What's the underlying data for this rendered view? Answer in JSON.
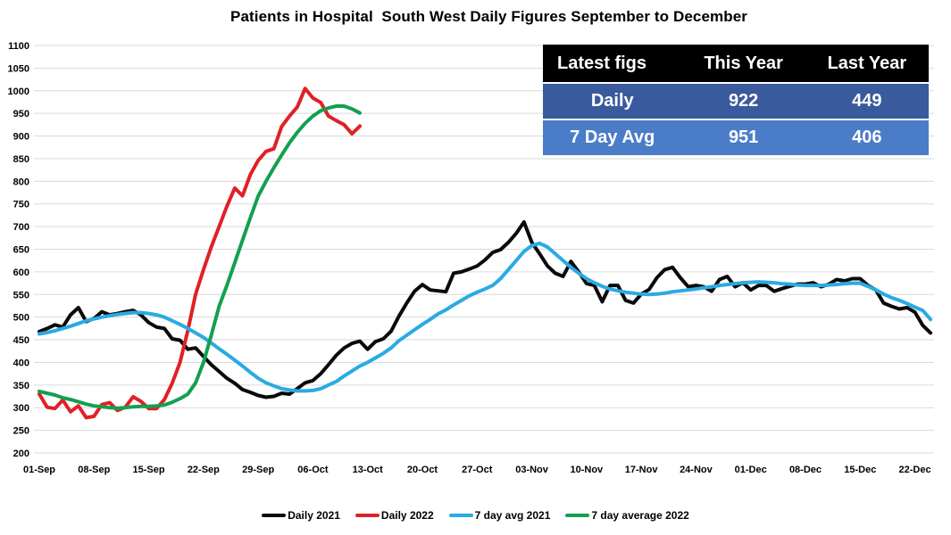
{
  "title": "Patients in Hospital  South West Daily Figures September to December",
  "table": {
    "headers": [
      "Latest figs",
      "This Year",
      "Last Year"
    ],
    "rows": [
      [
        "Daily",
        "922",
        "449"
      ],
      [
        "7 Day Avg",
        "951",
        "406"
      ]
    ],
    "colors": {
      "header_bg": "#000000",
      "header_text": "#ffffff",
      "row1_bg": "#3a5a9e",
      "row2_bg": "#4a7cc8",
      "row_text": "#ffffff"
    }
  },
  "chart_data": {
    "type": "line",
    "title": "Patients in Hospital  South West Daily Figures September to December",
    "xlabel": "",
    "ylabel": "",
    "ylim": [
      200,
      1100
    ],
    "y_tick_step": 50,
    "grid": true,
    "gridline_color": "#d9d9d9",
    "legend_position": "bottom",
    "x_tick_labels": [
      "01-Sep",
      "08-Sep",
      "15-Sep",
      "22-Sep",
      "29-Sep",
      "06-Oct",
      "13-Oct",
      "20-Oct",
      "27-Oct",
      "03-Nov",
      "10-Nov",
      "17-Nov",
      "24-Nov",
      "01-Dec",
      "08-Dec",
      "15-Dec",
      "22-Dec"
    ],
    "x_tick_interval_days": 7,
    "series": [
      {
        "name": "Daily 2021",
        "color": "#0a0a0a",
        "start_date": "01-Sep",
        "values": [
          468,
          475,
          483,
          478,
          505,
          521,
          490,
          497,
          512,
          505,
          508,
          512,
          515,
          505,
          488,
          478,
          475,
          452,
          449,
          429,
          432,
          413,
          395,
          380,
          365,
          354,
          340,
          334,
          327,
          323,
          325,
          332,
          330,
          342,
          355,
          360,
          375,
          395,
          416,
          432,
          442,
          447,
          429,
          446,
          452,
          469,
          502,
          531,
          557,
          572,
          560,
          558,
          556,
          597,
          600,
          606,
          613,
          626,
          643,
          649,
          665,
          685,
          710,
          665,
          640,
          613,
          597,
          590,
          623,
          600,
          574,
          570,
          534,
          570,
          570,
          537,
          531,
          551,
          561,
          587,
          605,
          610,
          587,
          567,
          570,
          567,
          557,
          583,
          590,
          567,
          576,
          560,
          570,
          570,
          557,
          563,
          568,
          573,
          573,
          576,
          567,
          573,
          583,
          580,
          585,
          585,
          570,
          560,
          531,
          524,
          518,
          521,
          511,
          482,
          465
        ]
      },
      {
        "name": "Daily 2022",
        "color": "#df2127",
        "start_date": "01-Sep",
        "values": [
          330,
          301,
          298,
          317,
          291,
          304,
          278,
          281,
          307,
          311,
          294,
          301,
          324,
          314,
          298,
          298,
          318,
          354,
          400,
          470,
          551,
          605,
          655,
          700,
          745,
          785,
          768,
          815,
          846,
          866,
          872,
          921,
          944,
          964,
          1005,
          984,
          974,
          944,
          934,
          925,
          905,
          922
        ]
      },
      {
        "name": "7 day avg 2021",
        "color": "#29abe2",
        "start_date": "01-Sep",
        "values": [
          463,
          466,
          470,
          475,
          480,
          486,
          492,
          496,
          500,
          503,
          506,
          508,
          510,
          510,
          508,
          505,
          500,
          492,
          484,
          475,
          465,
          455,
          443,
          430,
          418,
          405,
          392,
          378,
          365,
          355,
          348,
          342,
          339,
          337,
          337,
          338,
          342,
          350,
          358,
          370,
          381,
          392,
          400,
          410,
          420,
          432,
          448,
          460,
          472,
          484,
          495,
          507,
          516,
          527,
          537,
          547,
          555,
          562,
          570,
          585,
          605,
          625,
          645,
          658,
          663,
          655,
          640,
          625,
          610,
          597,
          585,
          576,
          568,
          562,
          558,
          555,
          553,
          551,
          550,
          551,
          553,
          556,
          558,
          560,
          562,
          565,
          567,
          570,
          572,
          574,
          576,
          577,
          578,
          577,
          576,
          574,
          573,
          571,
          570,
          570,
          570,
          571,
          572,
          574,
          575,
          575,
          568,
          560,
          551,
          543,
          537,
          530,
          522,
          515,
          495
        ]
      },
      {
        "name": "7 day average 2022",
        "color": "#12a050",
        "start_date": "01-Sep",
        "values": [
          336,
          332,
          328,
          322,
          318,
          313,
          308,
          304,
          302,
          300,
          299,
          300,
          302,
          303,
          303,
          304,
          306,
          312,
          320,
          330,
          355,
          400,
          460,
          524,
          570,
          620,
          670,
          720,
          767,
          800,
          830,
          858,
          885,
          908,
          928,
          944,
          956,
          962,
          966,
          966,
          960,
          951
        ]
      }
    ]
  }
}
